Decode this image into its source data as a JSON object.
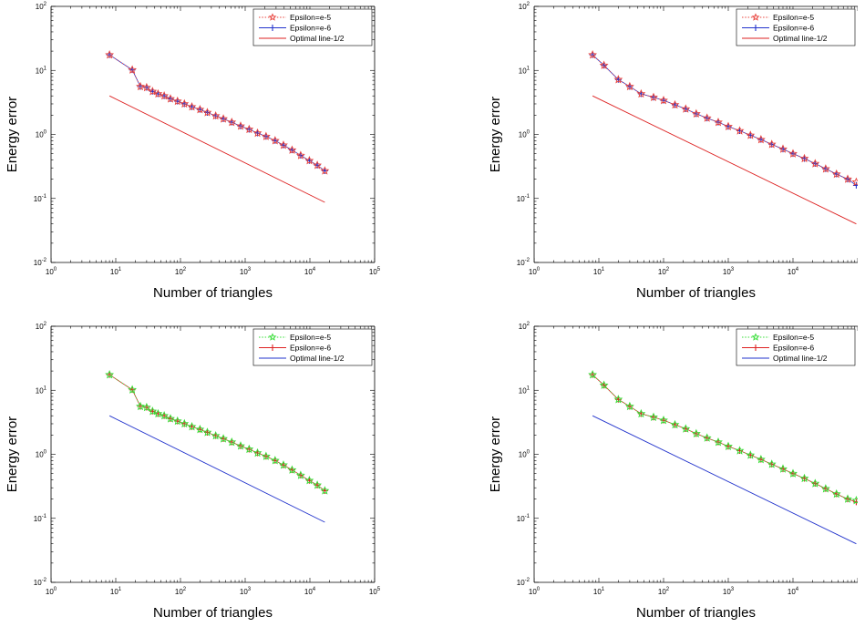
{
  "chart_data": [
    {
      "type": "line",
      "xlabel": "Number of triangles",
      "ylabel": "Energy error",
      "xscale": "log",
      "yscale": "log",
      "xlim": [
        1,
        100000
      ],
      "ylim": [
        0.01,
        100
      ],
      "x_ticks": [
        "10^0",
        "10^1",
        "10^2",
        "10^3",
        "10^4",
        "10^5"
      ],
      "y_ticks": [
        "10^-2",
        "10^-1",
        "10^0",
        "10^1",
        "10^2"
      ],
      "legend_position": "top-right",
      "grid": false,
      "series": [
        {
          "name": "Epsilon=e-5",
          "color": "#e8403a",
          "line_style": "dotted",
          "marker": "star",
          "points": [
            [
              8,
              17.5
            ],
            [
              18,
              10.2
            ],
            [
              24,
              5.6
            ],
            [
              30,
              5.4
            ],
            [
              37,
              4.7
            ],
            [
              45,
              4.3
            ],
            [
              56,
              4.0
            ],
            [
              70,
              3.6
            ],
            [
              90,
              3.3
            ],
            [
              115,
              3.0
            ],
            [
              150,
              2.7
            ],
            [
              200,
              2.45
            ],
            [
              260,
              2.2
            ],
            [
              350,
              1.95
            ],
            [
              460,
              1.75
            ],
            [
              620,
              1.55
            ],
            [
              850,
              1.35
            ],
            [
              1150,
              1.2
            ],
            [
              1550,
              1.05
            ],
            [
              2100,
              0.93
            ],
            [
              2900,
              0.8
            ],
            [
              3900,
              0.68
            ],
            [
              5300,
              0.57
            ],
            [
              7200,
              0.47
            ],
            [
              9800,
              0.39
            ],
            [
              13000,
              0.33
            ],
            [
              17000,
              0.27
            ]
          ]
        },
        {
          "name": "Epsilon=e-6",
          "color": "#2233cc",
          "line_style": "solid",
          "marker": "plus",
          "points": [
            [
              8,
              17.5
            ],
            [
              18,
              10.2
            ],
            [
              24,
              5.6
            ],
            [
              30,
              5.4
            ],
            [
              37,
              4.7
            ],
            [
              45,
              4.3
            ],
            [
              56,
              4.0
            ],
            [
              70,
              3.6
            ],
            [
              90,
              3.3
            ],
            [
              115,
              3.0
            ],
            [
              150,
              2.7
            ],
            [
              200,
              2.45
            ],
            [
              260,
              2.2
            ],
            [
              350,
              1.95
            ],
            [
              460,
              1.75
            ],
            [
              620,
              1.55
            ],
            [
              850,
              1.35
            ],
            [
              1150,
              1.2
            ],
            [
              1550,
              1.05
            ],
            [
              2100,
              0.93
            ],
            [
              2900,
              0.8
            ],
            [
              3900,
              0.68
            ],
            [
              5300,
              0.57
            ],
            [
              7200,
              0.47
            ],
            [
              9800,
              0.39
            ],
            [
              13000,
              0.33
            ],
            [
              17000,
              0.27
            ]
          ]
        },
        {
          "name": "Optimal line-1/2",
          "color": "#dd2222",
          "line_style": "solid",
          "marker": "none",
          "points": [
            [
              8,
              4.0
            ],
            [
              17000,
              0.087
            ]
          ]
        }
      ]
    },
    {
      "type": "line",
      "xlabel": "Number of triangles",
      "ylabel": "Energy error",
      "xscale": "log",
      "yscale": "log",
      "xlim": [
        1,
        100000
      ],
      "ylim": [
        0.01,
        100
      ],
      "x_ticks": [
        "10^0",
        "10^1",
        "10^2",
        "10^3",
        "10^4"
      ],
      "y_ticks": [
        "10^-2",
        "10^-1",
        "10^0",
        "10^1",
        "10^2"
      ],
      "legend_position": "top-right",
      "grid": false,
      "series": [
        {
          "name": "Epsilon=e-5",
          "color": "#e8403a",
          "line_style": "dotted",
          "marker": "star",
          "points": [
            [
              8,
              17.5
            ],
            [
              12,
              12.0
            ],
            [
              20,
              7.2
            ],
            [
              30,
              5.6
            ],
            [
              45,
              4.3
            ],
            [
              70,
              3.8
            ],
            [
              100,
              3.4
            ],
            [
              150,
              2.9
            ],
            [
              220,
              2.5
            ],
            [
              320,
              2.1
            ],
            [
              470,
              1.8
            ],
            [
              700,
              1.55
            ],
            [
              1000,
              1.33
            ],
            [
              1500,
              1.14
            ],
            [
              2200,
              0.97
            ],
            [
              3200,
              0.83
            ],
            [
              4700,
              0.7
            ],
            [
              7000,
              0.59
            ],
            [
              10000,
              0.5
            ],
            [
              15000,
              0.42
            ],
            [
              22000,
              0.35
            ],
            [
              32000,
              0.29
            ],
            [
              47000,
              0.24
            ],
            [
              70000,
              0.2
            ],
            [
              95000,
              0.18
            ]
          ]
        },
        {
          "name": "Epsilon=e-6",
          "color": "#2233cc",
          "line_style": "solid",
          "marker": "plus",
          "points": [
            [
              8,
              17.5
            ],
            [
              12,
              12.0
            ],
            [
              20,
              7.2
            ],
            [
              30,
              5.6
            ],
            [
              45,
              4.3
            ],
            [
              70,
              3.8
            ],
            [
              100,
              3.4
            ],
            [
              150,
              2.9
            ],
            [
              220,
              2.5
            ],
            [
              320,
              2.1
            ],
            [
              470,
              1.8
            ],
            [
              700,
              1.55
            ],
            [
              1000,
              1.33
            ],
            [
              1500,
              1.14
            ],
            [
              2200,
              0.97
            ],
            [
              3200,
              0.83
            ],
            [
              4700,
              0.7
            ],
            [
              7000,
              0.59
            ],
            [
              10000,
              0.5
            ],
            [
              15000,
              0.42
            ],
            [
              22000,
              0.35
            ],
            [
              32000,
              0.29
            ],
            [
              47000,
              0.24
            ],
            [
              70000,
              0.2
            ],
            [
              95000,
              0.16
            ]
          ]
        },
        {
          "name": "Optimal line-1/2",
          "color": "#dd2222",
          "line_style": "solid",
          "marker": "none",
          "points": [
            [
              8,
              4.0
            ],
            [
              95000,
              0.04
            ]
          ]
        }
      ]
    },
    {
      "type": "line",
      "xlabel": "Number of triangles",
      "ylabel": "Energy error",
      "xscale": "log",
      "yscale": "log",
      "xlim": [
        1,
        100000
      ],
      "ylim": [
        0.01,
        100
      ],
      "x_ticks": [
        "10^0",
        "10^1",
        "10^2",
        "10^3",
        "10^4",
        "10^5"
      ],
      "y_ticks": [
        "10^-2",
        "10^-1",
        "10^0",
        "10^1",
        "10^2"
      ],
      "legend_position": "top-right",
      "grid": false,
      "series": [
        {
          "name": "Epsilon=e-5",
          "color": "#33dd33",
          "line_style": "dotted",
          "marker": "star",
          "points": [
            [
              8,
              17.5
            ],
            [
              18,
              10.2
            ],
            [
              24,
              5.6
            ],
            [
              30,
              5.4
            ],
            [
              37,
              4.7
            ],
            [
              45,
              4.3
            ],
            [
              56,
              4.0
            ],
            [
              70,
              3.6
            ],
            [
              90,
              3.3
            ],
            [
              115,
              3.0
            ],
            [
              150,
              2.7
            ],
            [
              200,
              2.45
            ],
            [
              260,
              2.2
            ],
            [
              350,
              1.95
            ],
            [
              460,
              1.75
            ],
            [
              620,
              1.55
            ],
            [
              850,
              1.35
            ],
            [
              1150,
              1.2
            ],
            [
              1550,
              1.05
            ],
            [
              2100,
              0.93
            ],
            [
              2900,
              0.8
            ],
            [
              3900,
              0.68
            ],
            [
              5300,
              0.57
            ],
            [
              7200,
              0.47
            ],
            [
              9800,
              0.39
            ],
            [
              13000,
              0.33
            ],
            [
              17000,
              0.27
            ]
          ]
        },
        {
          "name": "Epsilon=e-6",
          "color": "#dd2222",
          "line_style": "solid",
          "marker": "plus",
          "points": [
            [
              8,
              17.5
            ],
            [
              18,
              10.2
            ],
            [
              24,
              5.6
            ],
            [
              30,
              5.4
            ],
            [
              37,
              4.7
            ],
            [
              45,
              4.3
            ],
            [
              56,
              4.0
            ],
            [
              70,
              3.6
            ],
            [
              90,
              3.3
            ],
            [
              115,
              3.0
            ],
            [
              150,
              2.7
            ],
            [
              200,
              2.45
            ],
            [
              260,
              2.2
            ],
            [
              350,
              1.95
            ],
            [
              460,
              1.75
            ],
            [
              620,
              1.55
            ],
            [
              850,
              1.35
            ],
            [
              1150,
              1.2
            ],
            [
              1550,
              1.05
            ],
            [
              2100,
              0.93
            ],
            [
              2900,
              0.8
            ],
            [
              3900,
              0.68
            ],
            [
              5300,
              0.57
            ],
            [
              7200,
              0.47
            ],
            [
              9800,
              0.39
            ],
            [
              13000,
              0.33
            ],
            [
              17000,
              0.27
            ]
          ]
        },
        {
          "name": "Optimal line-1/2",
          "color": "#2233cc",
          "line_style": "solid",
          "marker": "none",
          "points": [
            [
              8,
              4.0
            ],
            [
              17000,
              0.087
            ]
          ]
        }
      ]
    },
    {
      "type": "line",
      "xlabel": "Number of triangles",
      "ylabel": "Energy error",
      "xscale": "log",
      "yscale": "log",
      "xlim": [
        1,
        100000
      ],
      "ylim": [
        0.01,
        100
      ],
      "x_ticks": [
        "10^0",
        "10^1",
        "10^2",
        "10^3",
        "10^4"
      ],
      "y_ticks": [
        "10^-2",
        "10^-1",
        "10^0",
        "10^1",
        "10^2"
      ],
      "legend_position": "top-right",
      "grid": false,
      "series": [
        {
          "name": "Epsilon=e-5",
          "color": "#33dd33",
          "line_style": "dotted",
          "marker": "star",
          "points": [
            [
              8,
              17.5
            ],
            [
              12,
              12.0
            ],
            [
              20,
              7.2
            ],
            [
              30,
              5.6
            ],
            [
              45,
              4.3
            ],
            [
              70,
              3.8
            ],
            [
              100,
              3.4
            ],
            [
              150,
              2.9
            ],
            [
              220,
              2.5
            ],
            [
              320,
              2.1
            ],
            [
              470,
              1.8
            ],
            [
              700,
              1.55
            ],
            [
              1000,
              1.33
            ],
            [
              1500,
              1.14
            ],
            [
              2200,
              0.97
            ],
            [
              3200,
              0.83
            ],
            [
              4700,
              0.7
            ],
            [
              7000,
              0.59
            ],
            [
              10000,
              0.5
            ],
            [
              15000,
              0.42
            ],
            [
              22000,
              0.35
            ],
            [
              32000,
              0.29
            ],
            [
              47000,
              0.24
            ],
            [
              70000,
              0.2
            ],
            [
              95000,
              0.19
            ]
          ]
        },
        {
          "name": "Epsilon=e-6",
          "color": "#dd2222",
          "line_style": "solid",
          "marker": "plus",
          "points": [
            [
              8,
              17.5
            ],
            [
              12,
              12.0
            ],
            [
              20,
              7.2
            ],
            [
              30,
              5.6
            ],
            [
              45,
              4.3
            ],
            [
              70,
              3.8
            ],
            [
              100,
              3.4
            ],
            [
              150,
              2.9
            ],
            [
              220,
              2.5
            ],
            [
              320,
              2.1
            ],
            [
              470,
              1.8
            ],
            [
              700,
              1.55
            ],
            [
              1000,
              1.33
            ],
            [
              1500,
              1.14
            ],
            [
              2200,
              0.97
            ],
            [
              3200,
              0.83
            ],
            [
              4700,
              0.7
            ],
            [
              7000,
              0.59
            ],
            [
              10000,
              0.5
            ],
            [
              15000,
              0.42
            ],
            [
              22000,
              0.35
            ],
            [
              32000,
              0.29
            ],
            [
              47000,
              0.24
            ],
            [
              70000,
              0.2
            ],
            [
              95000,
              0.18
            ]
          ]
        },
        {
          "name": "Optimal line-1/2",
          "color": "#2233cc",
          "line_style": "solid",
          "marker": "none",
          "points": [
            [
              8,
              4.0
            ],
            [
              95000,
              0.04
            ]
          ]
        }
      ]
    }
  ]
}
